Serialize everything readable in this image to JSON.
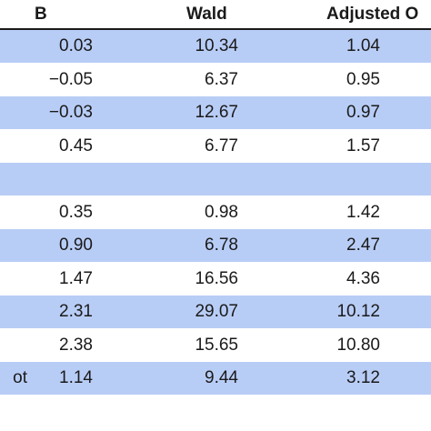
{
  "table": {
    "headers": {
      "b": "B",
      "wald": "Wald",
      "adjusted": "Adjusted O"
    },
    "rows": [
      {
        "stub": "",
        "b": "0.03",
        "wald": "10.34",
        "adjusted": "1.04"
      },
      {
        "stub": "",
        "b": "−0.05",
        "wald": "6.37",
        "adjusted": "0.95"
      },
      {
        "stub": "",
        "b": "−0.03",
        "wald": "12.67",
        "adjusted": "0.97"
      },
      {
        "stub": "",
        "b": "0.45",
        "wald": "6.77",
        "adjusted": "1.57"
      },
      {
        "stub": "",
        "b": "",
        "wald": "",
        "adjusted": ""
      },
      {
        "stub": "",
        "b": "0.35",
        "wald": "0.98",
        "adjusted": "1.42"
      },
      {
        "stub": "",
        "b": "0.90",
        "wald": "6.78",
        "adjusted": "2.47"
      },
      {
        "stub": "",
        "b": "1.47",
        "wald": "16.56",
        "adjusted": "4.36"
      },
      {
        "stub": "",
        "b": "2.31",
        "wald": "29.07",
        "adjusted": "10.12"
      },
      {
        "stub": "",
        "b": "2.38",
        "wald": "15.65",
        "adjusted": "10.80"
      },
      {
        "stub": "ot",
        "b": "1.14",
        "wald": "9.44",
        "adjusted": "3.12"
      }
    ],
    "colors": {
      "shaded_row": "#b8cdf6",
      "plain_row": "#ffffff",
      "header_rule": "#1a1a1a"
    }
  }
}
